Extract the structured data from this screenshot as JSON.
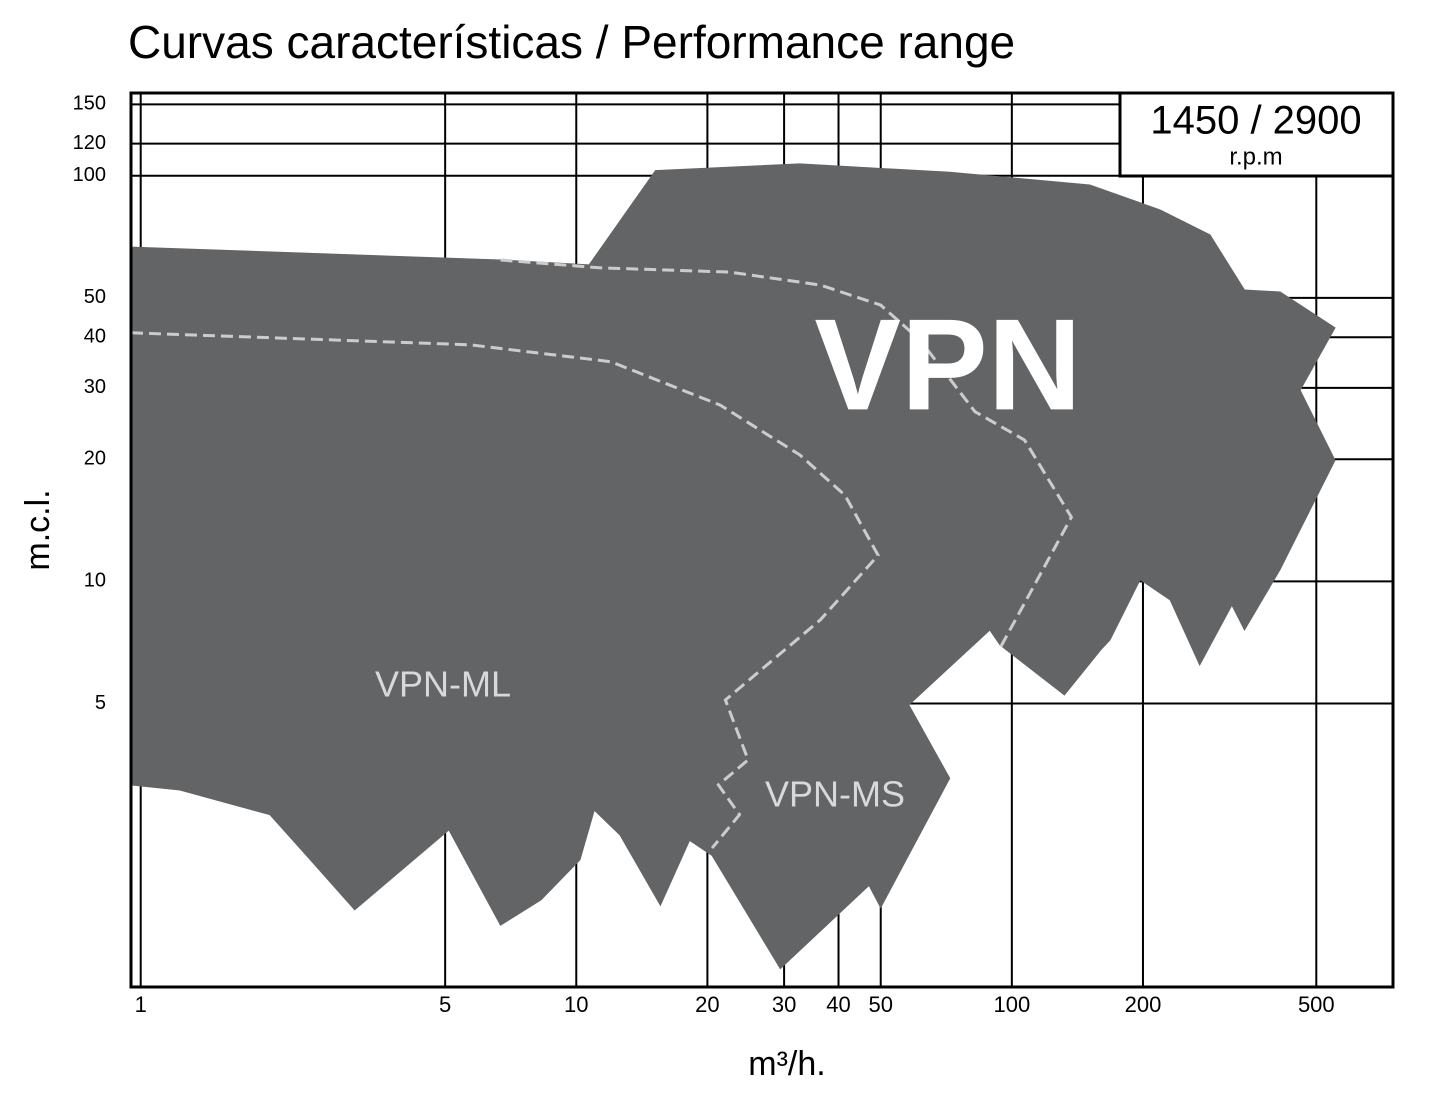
{
  "chart_data": {
    "type": "area",
    "title": "Curvas características / Performance range",
    "x_label": "m³/h.",
    "y_label": "m.c.l.",
    "speed": "1450 / 2900",
    "speed_unit": "r.p.m",
    "region_labels": [
      "VPN",
      "VPN-ML",
      "VPN-MS"
    ],
    "log_x": true,
    "log_y": true,
    "grid": true,
    "xlim": [
      0.95,
      750
    ],
    "ylim": [
      1,
      160
    ],
    "xticks": [
      1,
      5,
      10,
      20,
      30,
      40,
      50,
      100,
      200,
      500
    ],
    "yticks": [
      5,
      10,
      20,
      30,
      40,
      50,
      100,
      120,
      150
    ],
    "series": [
      {
        "color": "#636466",
        "style": "filled",
        "x": [
          0.95,
          6.7,
          10.7,
          15.2,
          32.6,
          72,
          151,
          219,
          285,
          342,
          413,
          552,
          459,
          552,
          413,
          342,
          320,
          270,
          231,
          197,
          168,
          160,
          132,
          94,
          89,
          58,
          72,
          50,
          47,
          29.4,
          20.5,
          18.2,
          15.6,
          12.6,
          11.0,
          10.2,
          8.3,
          6.7,
          5.1,
          3.1,
          2.45,
          1.98,
          1.23,
          0.95
        ],
        "values": [
          66.7,
          62,
          60.3,
          103,
          107,
          102,
          94.9,
          82.4,
          71.5,
          52.3,
          51.7,
          42.2,
          29.6,
          19.9,
          10.7,
          7.59,
          8.74,
          6.22,
          9.0,
          10.1,
          7.17,
          6.78,
          5.25,
          6.97,
          7.59,
          4.96,
          3.27,
          1.57,
          1.78,
          1.11,
          2.11,
          2.3,
          1.59,
          2.37,
          2.73,
          2.06,
          1.64,
          1.42,
          2.44,
          1.55,
          2.06,
          2.66,
          3.06,
          3.15
        ]
      },
      {
        "color": "#cccccc",
        "style": "dashed",
        "x": [
          6.7,
          11.3,
          22.5,
          36.3,
          50,
          61.5,
          82.3,
          107,
          137,
          94
        ],
        "values": [
          62,
          59.3,
          57.9,
          53.8,
          48,
          39.4,
          26.2,
          22.3,
          14.4,
          6.85
        ]
      },
      {
        "color": "#cccccc",
        "style": "dashed",
        "x": [
          0.95,
          5.7,
          12.0,
          21.4,
          32.6,
          41.4,
          49.3,
          36.3,
          22.0,
          24.8,
          21.2,
          23.7,
          20.5
        ],
        "values": [
          41,
          38.3,
          34.8,
          27.2,
          20.5,
          16.3,
          11.6,
          8.03,
          5.1,
          3.63,
          3.15,
          2.66,
          2.2
        ]
      }
    ]
  }
}
